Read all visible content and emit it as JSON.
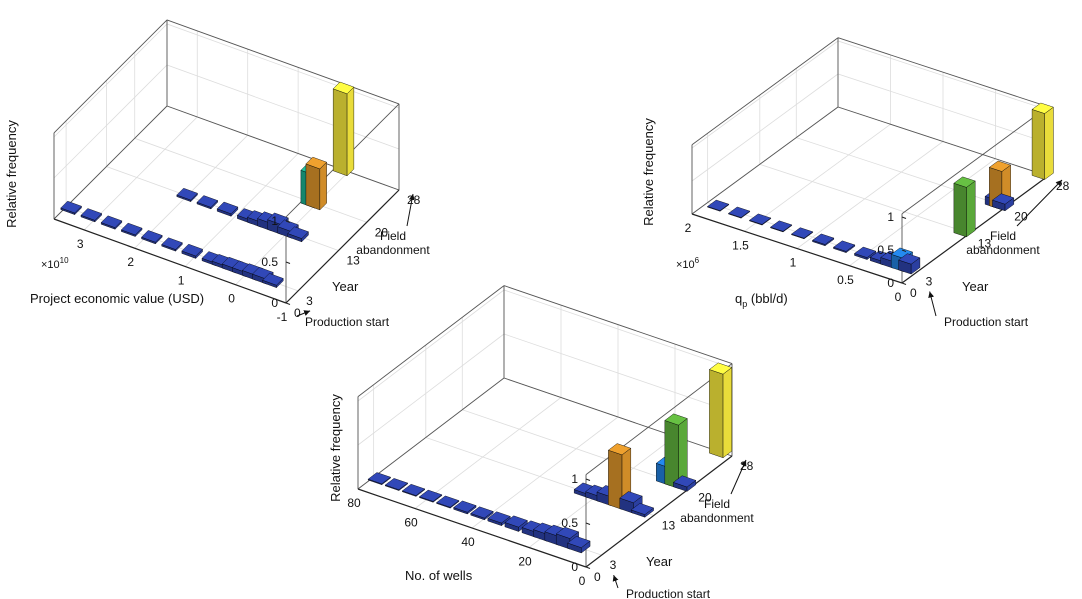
{
  "figure": {
    "panel_count": 3
  },
  "colors": {
    "low": "#2b3fa0",
    "mid_blue": "#1f78d1",
    "teal": "#1aa888",
    "green": "#5aa83a",
    "orange": "#d08c28",
    "yellow": "#e9dc3a",
    "axis": "#222222",
    "grid": "#dddddd"
  },
  "chart_data": [
    {
      "type": "bar3d",
      "zlabel": "Relative frequency",
      "xlabel": "Project economic value (USD)",
      "x_exponent": "×10",
      "x_exponent_power": "10",
      "ylabel": "Year",
      "z_ticks": [
        "0",
        "0.5",
        "1"
      ],
      "x_ticks": [
        "3",
        "2",
        "1",
        "0",
        "-1"
      ],
      "y_ticks": [
        "0",
        "3",
        "13",
        "20",
        "28"
      ],
      "zlim": [
        0,
        1
      ],
      "xlim": [
        3.6,
        -1
      ],
      "years": [
        0,
        3,
        13,
        20,
        28
      ],
      "annotations": [
        "Production start",
        "Field abandonment"
      ],
      "series": [
        {
          "year": 3,
          "x": [
            3.5,
            3.1,
            2.7,
            2.3,
            1.9,
            1.5,
            1.1,
            0.7,
            0.5,
            0.3,
            0.1,
            -0.1,
            -0.3,
            -0.5
          ],
          "values": [
            0.02,
            0.02,
            0.02,
            0.02,
            0.02,
            0.02,
            0.03,
            0.03,
            0.04,
            0.05,
            0.05,
            0.06,
            0.06,
            0.03
          ]
        },
        {
          "year": 13,
          "x": [
            2.0,
            1.6,
            1.2,
            0.8,
            0.6,
            0.4,
            0.2,
            0.0,
            -0.2
          ],
          "values": [
            0.02,
            0.02,
            0.03,
            0.04,
            0.06,
            0.09,
            0.12,
            0.08,
            0.04
          ]
        },
        {
          "year": 20,
          "x": [
            0.1,
            0.0
          ],
          "values": [
            0.4,
            0.5
          ]
        },
        {
          "year": 28,
          "x": [
            0.1
          ],
          "values": [
            1.0
          ]
        }
      ]
    },
    {
      "type": "bar3d",
      "zlabel": "Relative frequency",
      "xlabel": "q",
      "xlabel_sub": "p",
      "xlabel_suffix": " (bbl/d)",
      "x_exponent": "×10",
      "x_exponent_power": "6",
      "ylabel": "Year",
      "z_ticks": [
        "0",
        "0.5",
        "1"
      ],
      "x_ticks": [
        "2",
        "1.5",
        "1",
        "0.5",
        "0"
      ],
      "y_ticks": [
        "0",
        "3",
        "13",
        "20",
        "28"
      ],
      "zlim": [
        0,
        1
      ],
      "xlim": [
        2,
        0
      ],
      "years": [
        0,
        3,
        13,
        20,
        28
      ],
      "annotations": [
        "Production start",
        "Field abandonment"
      ],
      "series": [
        {
          "year": 3,
          "x": [
            1.9,
            1.7,
            1.5,
            1.3,
            1.1,
            0.9,
            0.7,
            0.5,
            0.35,
            0.25,
            0.15,
            0.08
          ],
          "values": [
            0.01,
            0.01,
            0.01,
            0.01,
            0.01,
            0.02,
            0.02,
            0.03,
            0.05,
            0.1,
            0.2,
            0.15
          ]
        },
        {
          "year": 13,
          "x": [
            0.05
          ],
          "values": [
            0.75
          ]
        },
        {
          "year": 20,
          "x": [
            0.1,
            0.06,
            0.03
          ],
          "values": [
            0.12,
            0.58,
            0.1
          ]
        },
        {
          "year": 28,
          "x": [
            0.05
          ],
          "values": [
            1.0
          ]
        }
      ]
    },
    {
      "type": "bar3d",
      "zlabel": "Relative frequency",
      "xlabel": "No. of wells",
      "ylabel": "Year",
      "z_ticks": [
        "0",
        "0.5",
        "1"
      ],
      "x_ticks": [
        "80",
        "60",
        "40",
        "20",
        "0"
      ],
      "y_ticks": [
        "0",
        "3",
        "13",
        "20",
        "28"
      ],
      "zlim": [
        0,
        1
      ],
      "xlim": [
        80,
        0
      ],
      "years": [
        0,
        3,
        13,
        20,
        28
      ],
      "annotations": [
        "Production start",
        "Field abandonment"
      ],
      "series": [
        {
          "year": 3,
          "x": [
            78,
            72,
            66,
            60,
            54,
            48,
            42,
            36,
            30,
            24,
            20,
            16,
            12,
            8
          ],
          "values": [
            0.01,
            0.01,
            0.01,
            0.01,
            0.01,
            0.02,
            0.02,
            0.03,
            0.05,
            0.06,
            0.08,
            0.1,
            0.12,
            0.06
          ]
        },
        {
          "year": 13,
          "x": [
            24,
            20,
            16,
            12,
            8,
            4
          ],
          "values": [
            0.04,
            0.06,
            0.1,
            0.62,
            0.12,
            0.03
          ]
        },
        {
          "year": 20,
          "x": [
            8,
            5,
            2
          ],
          "values": [
            0.2,
            0.72,
            0.05
          ]
        },
        {
          "year": 28,
          "x": [
            4
          ],
          "values": [
            0.95
          ]
        }
      ]
    }
  ]
}
